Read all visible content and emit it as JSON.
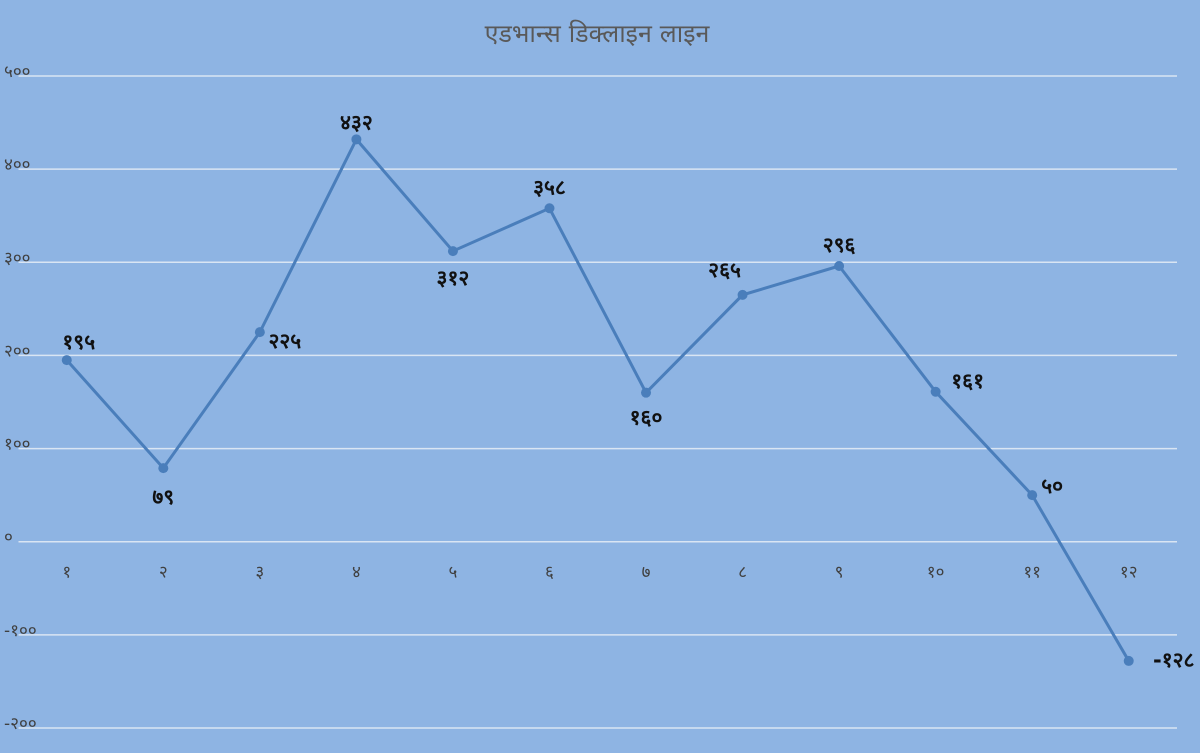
{
  "chart_data": {
    "type": "line",
    "title": "एडभान्स डिक्लाइन लाइन",
    "categories": [
      "१",
      "२",
      "३",
      "४",
      "५",
      "६",
      "७",
      "८",
      "९",
      "१०",
      "११",
      "१२"
    ],
    "values": [
      195,
      79,
      225,
      432,
      312,
      358,
      160,
      265,
      296,
      161,
      50,
      -128
    ],
    "value_labels": [
      "१९५",
      "७९",
      "२२५",
      "४३२",
      "३१२",
      "३५८",
      "१६०",
      "२६५",
      "२९६",
      "१६१",
      "५०",
      "-१२८"
    ],
    "color": "#4a7ebb",
    "ylim": [
      -200,
      500
    ],
    "yticks": [
      {
        "value": -200,
        "label": "-२००"
      },
      {
        "value": -100,
        "label": "-१००"
      },
      {
        "value": 0,
        "label": "०"
      },
      {
        "value": 100,
        "label": "१००"
      },
      {
        "value": 200,
        "label": "२००"
      },
      {
        "value": 300,
        "label": "३००"
      },
      {
        "value": 400,
        "label": "४००"
      },
      {
        "value": 500,
        "label": "५००"
      }
    ],
    "grid": true
  }
}
